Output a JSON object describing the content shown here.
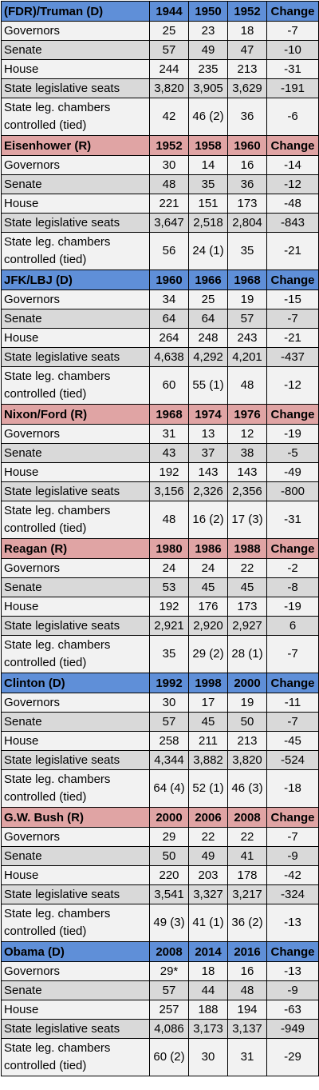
{
  "row_labels": {
    "governors": "Governors",
    "senate": "Senate",
    "house": "House",
    "state_seats": "State legislative seats",
    "chambers_line1": "State leg. chambers",
    "chambers_line2": "controlled (tied)"
  },
  "change_label": "Change",
  "blocks": [
    {
      "name": "(FDR)/Truman (D)",
      "party": "D",
      "years": [
        "1944",
        "1950",
        "1952"
      ],
      "governors": [
        "25",
        "23",
        "18",
        "-7"
      ],
      "senate": [
        "57",
        "49",
        "47",
        "-10"
      ],
      "house": [
        "244",
        "235",
        "213",
        "-31"
      ],
      "state_seats": [
        "3,820",
        "3,905",
        "3,629",
        "-191"
      ],
      "chambers": [
        "42",
        "46 (2)",
        "36",
        "-6"
      ]
    },
    {
      "name": "Eisenhower (R)",
      "party": "R",
      "years": [
        "1952",
        "1958",
        "1960"
      ],
      "governors": [
        "30",
        "14",
        "16",
        "-14"
      ],
      "senate": [
        "48",
        "35",
        "36",
        "-12"
      ],
      "house": [
        "221",
        "151",
        "173",
        "-48"
      ],
      "state_seats": [
        "3,647",
        "2,518",
        "2,804",
        "-843"
      ],
      "chambers": [
        "56",
        "24 (1)",
        "35",
        "-21"
      ]
    },
    {
      "name": "JFK/LBJ (D)",
      "party": "D",
      "years": [
        "1960",
        "1966",
        "1968"
      ],
      "governors": [
        "34",
        "25",
        "19",
        "-15"
      ],
      "senate": [
        "64",
        "64",
        "57",
        "-7"
      ],
      "house": [
        "264",
        "248",
        "243",
        "-21"
      ],
      "state_seats": [
        "4,638",
        "4,292",
        "4,201",
        "-437"
      ],
      "chambers": [
        "60",
        "55 (1)",
        "48",
        "-12"
      ]
    },
    {
      "name": "Nixon/Ford (R)",
      "party": "R",
      "years": [
        "1968",
        "1974",
        "1976"
      ],
      "governors": [
        "31",
        "13",
        "12",
        "-19"
      ],
      "senate": [
        "43",
        "37",
        "38",
        "-5"
      ],
      "house": [
        "192",
        "143",
        "143",
        "-49"
      ],
      "state_seats": [
        "3,156",
        "2,326",
        "2,356",
        "-800"
      ],
      "chambers": [
        "48",
        "16 (2)",
        "17 (3)",
        "-31"
      ]
    },
    {
      "name": "Reagan (R)",
      "party": "R",
      "years": [
        "1980",
        "1986",
        "1988"
      ],
      "governors": [
        "24",
        "24",
        "22",
        "-2"
      ],
      "senate": [
        "53",
        "45",
        "45",
        "-8"
      ],
      "house": [
        "192",
        "176",
        "173",
        "-19"
      ],
      "state_seats": [
        "2,921",
        "2,920",
        "2,927",
        "6"
      ],
      "chambers": [
        "35",
        "29 (2)",
        "28 (1)",
        "-7"
      ]
    },
    {
      "name": "Clinton (D)",
      "party": "D",
      "years": [
        "1992",
        "1998",
        "2000"
      ],
      "governors": [
        "30",
        "17",
        "19",
        "-11"
      ],
      "senate": [
        "57",
        "45",
        "50",
        "-7"
      ],
      "house": [
        "258",
        "211",
        "213",
        "-45"
      ],
      "state_seats": [
        "4,344",
        "3,882",
        "3,820",
        "-524"
      ],
      "chambers": [
        "64 (4)",
        "52 (1)",
        "46 (3)",
        "-18"
      ]
    },
    {
      "name": "G.W. Bush (R)",
      "party": "R",
      "years": [
        "2000",
        "2006",
        "2008"
      ],
      "governors": [
        "29",
        "22",
        "22",
        "-7"
      ],
      "senate": [
        "50",
        "49",
        "41",
        "-9"
      ],
      "house": [
        "220",
        "203",
        "178",
        "-42"
      ],
      "state_seats": [
        "3,541",
        "3,327",
        "3,217",
        "-324"
      ],
      "chambers": [
        "49 (3)",
        "41 (1)",
        "36 (2)",
        "-13"
      ]
    },
    {
      "name": "Obama (D)",
      "party": "D",
      "years": [
        "2008",
        "2014",
        "2016"
      ],
      "governors": [
        "29*",
        "18",
        "16",
        "-13"
      ],
      "senate": [
        "57",
        "44",
        "48",
        "-9"
      ],
      "house": [
        "257",
        "188",
        "194",
        "-63"
      ],
      "state_seats": [
        "4,086",
        "3,173",
        "3,137",
        "-949"
      ],
      "chambers": [
        "60 (2)",
        "30",
        "31",
        "-29"
      ]
    }
  ],
  "colors": {
    "democrat_header": "#5f8fd8",
    "republican_header": "#e0a4a4",
    "row_light": "#f2f2f2",
    "row_dark": "#d9d9d9"
  }
}
